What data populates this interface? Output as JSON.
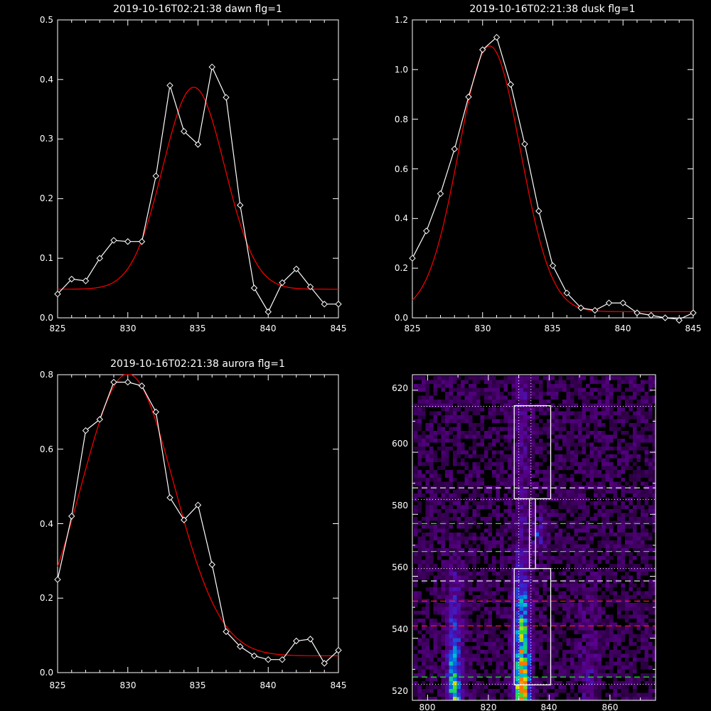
{
  "colors": {
    "background": "#000000",
    "axis": "#ffffff",
    "data_line": "#ffffff",
    "fit_line": "#ff0000"
  },
  "chart_data": [
    {
      "type": "line",
      "title": "2019-10-16T02:21:38 dawn flg=1",
      "xlim": [
        825,
        845
      ],
      "ylim": [
        0,
        0.5
      ],
      "xticks": [
        "825",
        "830",
        "835",
        "840",
        "845"
      ],
      "yticks": [
        "0.0",
        "0.1",
        "0.2",
        "0.3",
        "0.4",
        "0.5"
      ],
      "series": [
        {
          "marker": "diamond",
          "x": [
            825,
            826,
            827,
            828,
            829,
            830,
            831,
            832,
            833,
            834,
            835,
            836,
            837,
            838,
            839,
            840,
            841,
            842,
            843,
            844,
            845
          ],
          "y": [
            0.04,
            0.065,
            0.062,
            0.1,
            0.13,
            0.128,
            0.128,
            0.238,
            0.39,
            0.313,
            0.291,
            0.421,
            0.37,
            0.189,
            0.05,
            0.01,
            0.059,
            0.082,
            0.052,
            0.023,
            0.023
          ]
        },
        {
          "fit": "gaussian",
          "amplitude": 0.339,
          "center": 834.7,
          "sigma": 2.2,
          "offset": 0.048
        }
      ]
    },
    {
      "type": "line",
      "title": "2019-10-16T02:21:38 dusk flg=1",
      "xlim": [
        825,
        845
      ],
      "ylim": [
        0,
        1.2
      ],
      "xticks": [
        "825",
        "830",
        "835",
        "840",
        "845"
      ],
      "yticks": [
        "0.0",
        "0.2",
        "0.4",
        "0.6",
        "0.8",
        "1.0",
        "1.2"
      ],
      "series": [
        {
          "marker": "diamond",
          "x": [
            825,
            826,
            827,
            828,
            829,
            830,
            831,
            832,
            833,
            834,
            835,
            836,
            837,
            838,
            839,
            840,
            841,
            842,
            843,
            844,
            845
          ],
          "y": [
            0.24,
            0.35,
            0.5,
            0.68,
            0.89,
            1.08,
            1.13,
            0.94,
            0.7,
            0.43,
            0.21,
            0.1,
            0.04,
            0.03,
            0.06,
            0.06,
            0.02,
            0.01,
            0.0,
            -0.01,
            0.02
          ]
        },
        {
          "fit": "gaussian",
          "amplitude": 1.07,
          "center": 830.5,
          "sigma": 2.2,
          "offset": 0.025
        }
      ]
    },
    {
      "type": "line",
      "title": "2019-10-16T02:21:38 aurora flg=1",
      "xlim": [
        825,
        845
      ],
      "ylim": [
        0,
        0.8
      ],
      "xticks": [
        "825",
        "830",
        "835",
        "840",
        "845"
      ],
      "yticks": [
        "0.0",
        "0.2",
        "0.4",
        "0.6",
        "0.8"
      ],
      "series": [
        {
          "marker": "diamond",
          "x": [
            825,
            826,
            827,
            828,
            829,
            830,
            831,
            832,
            833,
            834,
            835,
            836,
            837,
            838,
            839,
            840,
            841,
            842,
            843,
            844,
            845
          ],
          "y": [
            0.25,
            0.42,
            0.65,
            0.68,
            0.78,
            0.78,
            0.77,
            0.7,
            0.47,
            0.41,
            0.45,
            0.29,
            0.11,
            0.07,
            0.045,
            0.035,
            0.035,
            0.085,
            0.09,
            0.025,
            0.06
          ]
        },
        {
          "fit": "gaussian",
          "amplitude": 0.757,
          "center": 830.0,
          "sigma": 3.3,
          "offset": 0.045
        }
      ]
    },
    {
      "type": "heatmap",
      "title": "",
      "xlim": [
        795,
        875
      ],
      "ylim": [
        520,
        625
      ],
      "xticks": [
        "800",
        "820",
        "840",
        "860"
      ],
      "yticks": [
        "520",
        "540",
        "560",
        "580",
        "600",
        "620"
      ],
      "overlays": {
        "vertical_dotted_x": [
          830,
          834
        ],
        "white_dashed_y": [
          588.5,
          558.5
        ],
        "white_dotted_y": [
          614.8,
          584.8,
          562.5,
          525.2
        ],
        "green_dashed_y": [
          577,
          568,
          527.5
        ],
        "red_dashed_y": [
          552,
          544
        ],
        "boxes": [
          {
            "x0": 828.5,
            "x1": 840.5,
            "y0": 585,
            "y1": 615
          },
          {
            "x0": 833.5,
            "x1": 835.5,
            "y0": 562.5,
            "y1": 585
          },
          {
            "x0": 828.5,
            "x1": 840.5,
            "y0": 525,
            "y1": 562.5
          }
        ]
      }
    }
  ]
}
